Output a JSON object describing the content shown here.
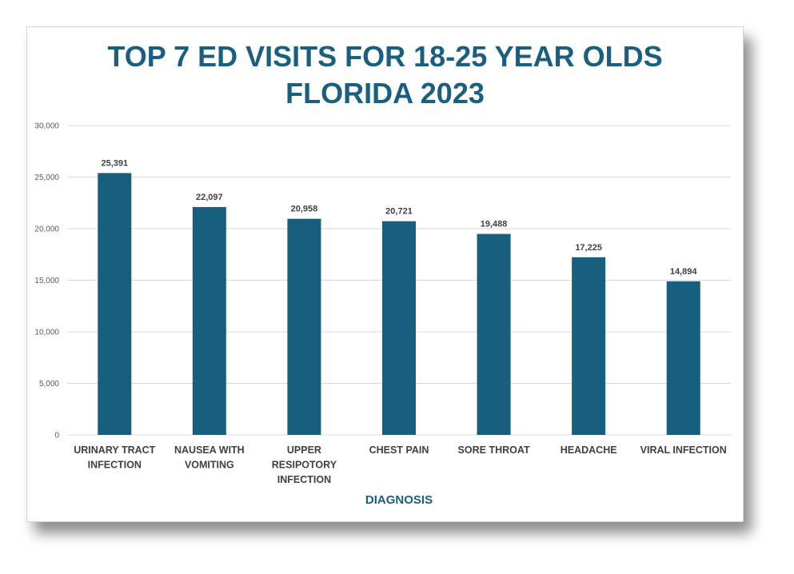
{
  "chart_data": {
    "type": "bar",
    "title": [
      "TOP 7 ED VISITS FOR 18-25 YEAR OLDS",
      "FLORIDA 2023"
    ],
    "xlabel": "DIAGNOSIS",
    "ylabel": "",
    "categories": [
      [
        "URINARY TRACT",
        "INFECTION"
      ],
      [
        "NAUSEA WITH",
        "VOMITING"
      ],
      [
        "UPPER",
        "RESIPOTORY",
        "INFECTION"
      ],
      [
        "CHEST PAIN"
      ],
      [
        "SORE THROAT"
      ],
      [
        "HEADACHE"
      ],
      [
        "VIRAL INFECTION"
      ]
    ],
    "values": [
      25391,
      22097,
      20958,
      20721,
      19488,
      17225,
      14894
    ],
    "value_labels": [
      "25,391",
      "22,097",
      "20,958",
      "20,721",
      "19,488",
      "17,225",
      "14,894"
    ],
    "ylim": [
      0,
      30000
    ],
    "yticks": [
      0,
      5000,
      10000,
      15000,
      20000,
      25000,
      30000
    ],
    "ytick_labels": [
      "0",
      "5,000",
      "10,000",
      "15,000",
      "20,000",
      "25,000",
      "30,000"
    ],
    "grid": true,
    "bar_color": "#175e7f",
    "title_color": "#1a5f7f"
  }
}
